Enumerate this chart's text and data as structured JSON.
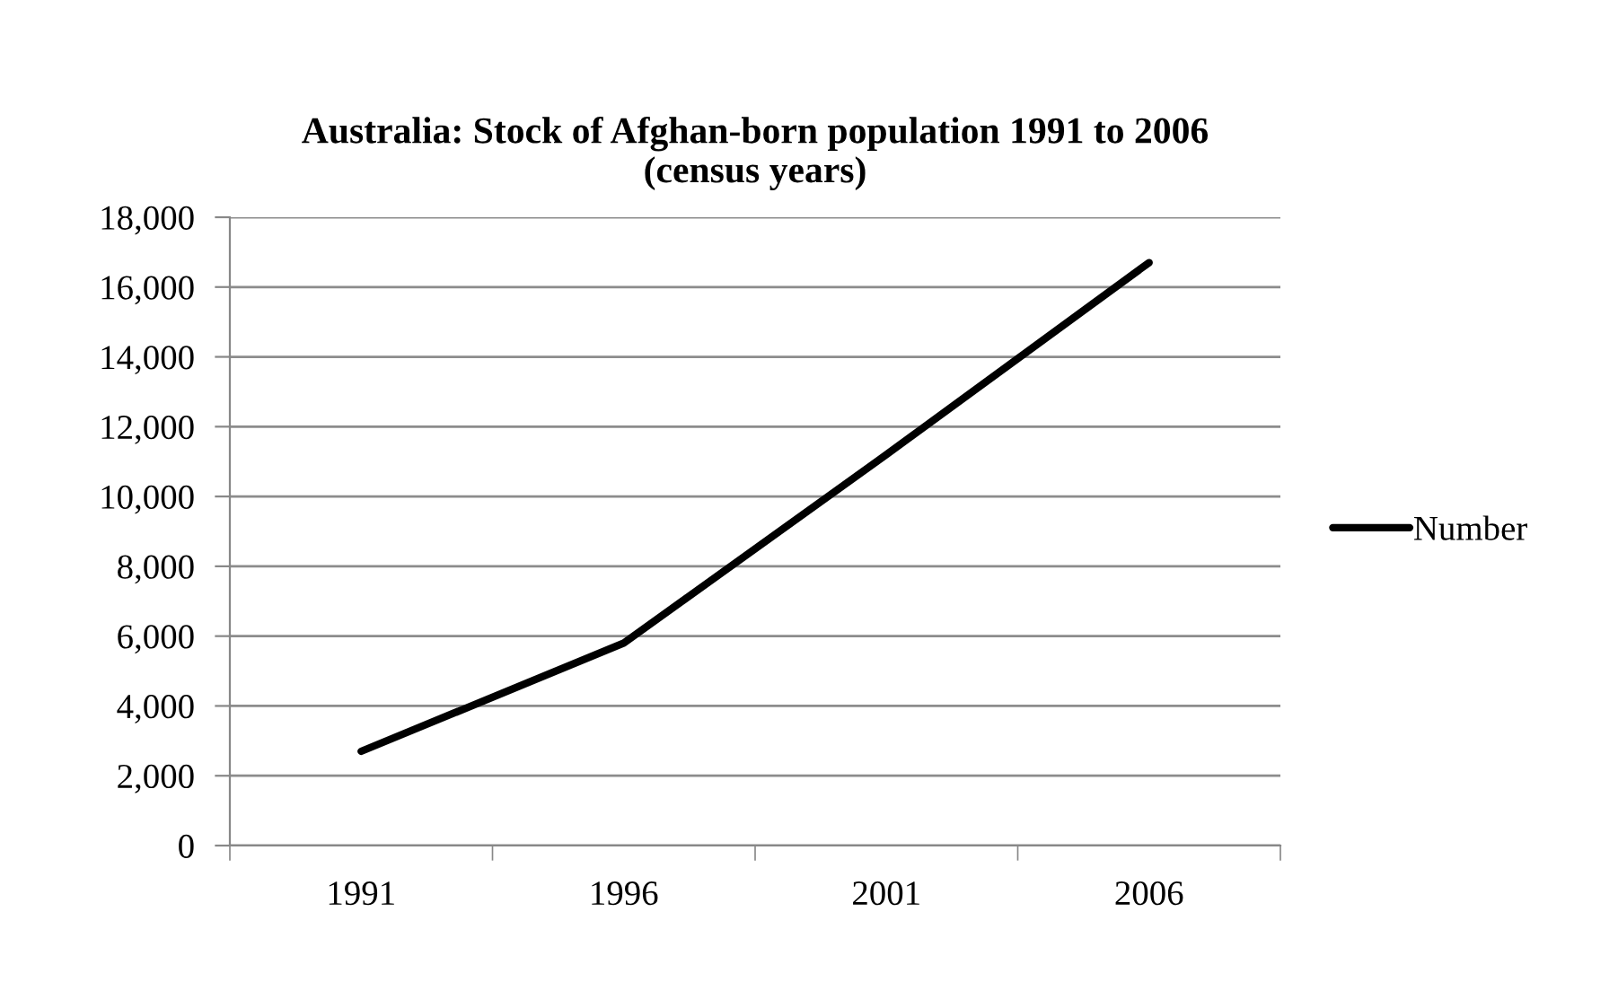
{
  "chart_data": {
    "type": "line",
    "title": "Australia: Stock of Afghan-born population 1991 to 2006\n(census years)",
    "categories": [
      "1991",
      "1996",
      "2001",
      "2006"
    ],
    "series": [
      {
        "name": "Number",
        "color": "#000000",
        "values": [
          2700,
          5800,
          11200,
          16700
        ]
      }
    ],
    "ylim": [
      0,
      18000
    ],
    "yticks": [
      {
        "value": 0,
        "label": "0"
      },
      {
        "value": 2000,
        "label": "2,000"
      },
      {
        "value": 4000,
        "label": "4,000"
      },
      {
        "value": 6000,
        "label": "6,000"
      },
      {
        "value": 8000,
        "label": "8,000"
      },
      {
        "value": 10000,
        "label": "10,000"
      },
      {
        "value": 12000,
        "label": "12,000"
      },
      {
        "value": 14000,
        "label": "14,000"
      },
      {
        "value": 16000,
        "label": "16,000"
      },
      {
        "value": 18000,
        "label": "18,000"
      }
    ],
    "grid": "y",
    "legend": "right",
    "marker": "none",
    "line_style": "solid"
  }
}
